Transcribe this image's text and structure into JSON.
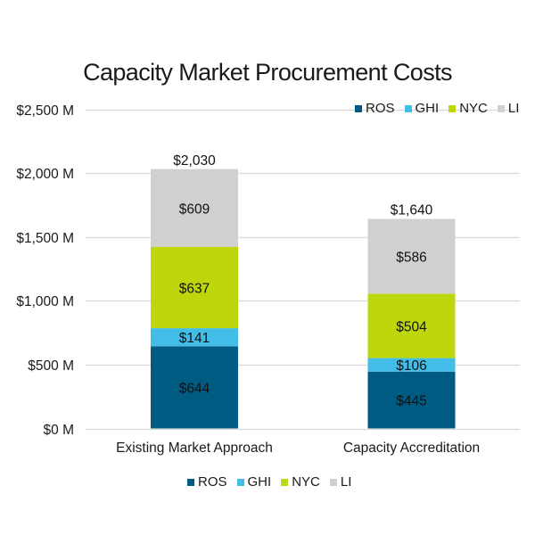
{
  "chart_data": {
    "type": "bar",
    "stacked": true,
    "title": "Capacity Market Procurement Costs",
    "xlabel": "",
    "ylabel": "",
    "ylim": [
      0,
      2500
    ],
    "yticks": [
      0,
      500,
      1000,
      1500,
      2000,
      2500
    ],
    "ytick_labels": [
      "$0 M",
      "$500 M",
      "$1,000 M",
      "$1,500 M",
      "$2,000 M",
      "$2,500 M"
    ],
    "grid": true,
    "categories": [
      "Existing Market Approach",
      "Capacity Accreditation"
    ],
    "series": [
      {
        "name": "ROS",
        "color": "#005b82",
        "values": [
          644,
          445
        ],
        "labels": [
          "$644",
          "$445"
        ]
      },
      {
        "name": "GHI",
        "color": "#42bde8",
        "values": [
          141,
          106
        ],
        "labels": [
          "$141",
          "$106"
        ]
      },
      {
        "name": "NYC",
        "color": "#bed60c",
        "values": [
          637,
          504
        ],
        "labels": [
          "$637",
          "$504"
        ]
      },
      {
        "name": "LI",
        "color": "#d0d0cf",
        "values": [
          609,
          586
        ],
        "labels": [
          "$609",
          "$586"
        ]
      }
    ],
    "totals": [
      2030,
      1640
    ],
    "total_labels": [
      "$2,030",
      "$1,640"
    ],
    "legend": [
      "top-right",
      "bottom-center"
    ]
  }
}
